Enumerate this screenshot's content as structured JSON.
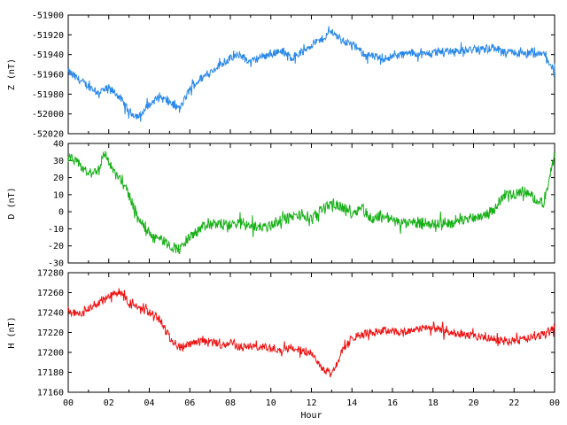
{
  "chart_data": [
    {
      "type": "line",
      "ylabel": "Z (nT)",
      "color": "#2a88e8",
      "ylim": [
        -52020,
        -51900
      ],
      "yticks": [
        -51900,
        -51920,
        -51940,
        -51960,
        -51980,
        -52000,
        -52020
      ],
      "xlim": [
        0,
        24
      ],
      "x": [
        0,
        0.5,
        1,
        1.5,
        2,
        2.5,
        3,
        3.5,
        4,
        4.5,
        5,
        5.5,
        6,
        6.5,
        7,
        7.5,
        8,
        8.5,
        9,
        9.5,
        10,
        10.5,
        11,
        11.5,
        12,
        12.5,
        13,
        13.5,
        14,
        14.5,
        15,
        15.5,
        16,
        16.5,
        17,
        17.5,
        18,
        18.5,
        19,
        19.5,
        20,
        20.5,
        21,
        21.5,
        22,
        22.5,
        23,
        23.5,
        24
      ],
      "values": [
        -51957,
        -51965,
        -51972,
        -51978,
        -51974,
        -51982,
        -51998,
        -52003,
        -51990,
        -51983,
        -51988,
        -51995,
        -51975,
        -51965,
        -51958,
        -51950,
        -51944,
        -51940,
        -51948,
        -51942,
        -51940,
        -51935,
        -51943,
        -51938,
        -51930,
        -51925,
        -51916,
        -51925,
        -51930,
        -51938,
        -51942,
        -51944,
        -51942,
        -51940,
        -51938,
        -51940,
        -51938,
        -51937,
        -51936,
        -51936,
        -51935,
        -51934,
        -51933,
        -51938,
        -51938,
        -51940,
        -51940,
        -51940,
        -51957
      ],
      "noise": 4
    },
    {
      "type": "line",
      "ylabel": "D (nT)",
      "color": "#16b016",
      "ylim": [
        -30,
        40
      ],
      "yticks": [
        40,
        30,
        20,
        10,
        0,
        -10,
        -20,
        -30
      ],
      "xlim": [
        0,
        24
      ],
      "x": [
        0,
        0.5,
        1,
        1.5,
        1.8,
        2.2,
        2.6,
        3,
        3.5,
        4,
        4.5,
        5,
        5.5,
        6,
        6.5,
        7,
        7.5,
        8,
        8.5,
        9,
        9.5,
        10,
        10.5,
        11,
        11.5,
        12,
        12.5,
        13,
        13.5,
        14,
        14.5,
        15,
        15.5,
        16,
        16.5,
        17,
        17.5,
        18,
        18.5,
        19,
        19.5,
        20,
        20.5,
        21,
        21.5,
        22,
        22.5,
        23,
        23.5,
        24
      ],
      "values": [
        32,
        28,
        22,
        25,
        35,
        24,
        18,
        10,
        -5,
        -12,
        -15,
        -20,
        -22,
        -15,
        -10,
        -8,
        -7,
        -8,
        -6,
        -8,
        -9,
        -8,
        -5,
        -3,
        -2,
        -5,
        2,
        5,
        3,
        -1,
        3,
        -5,
        -2,
        -5,
        -7,
        -7,
        -6,
        -7,
        -6,
        -7,
        -5,
        -3,
        -2,
        1,
        10,
        10,
        12,
        8,
        5,
        34
      ],
      "noise": 3
    },
    {
      "type": "line",
      "ylabel": "H (nT)",
      "color": "#ee1111",
      "ylim": [
        17160,
        17280
      ],
      "yticks": [
        17280,
        17260,
        17240,
        17220,
        17200,
        17180,
        17160
      ],
      "xlim": [
        0,
        24
      ],
      "x": [
        0,
        0.5,
        1,
        1.5,
        2,
        2.5,
        3,
        3.5,
        4,
        4.5,
        5,
        5.5,
        6,
        6.5,
        7,
        7.5,
        8,
        8.5,
        9,
        9.5,
        10,
        10.5,
        11,
        11.5,
        12,
        12.5,
        13,
        13.5,
        14,
        14.5,
        15,
        15.5,
        16,
        16.5,
        17,
        17.5,
        18,
        18.5,
        19,
        19.5,
        20,
        20.5,
        21,
        21.5,
        22,
        22.5,
        23,
        23.5,
        24
      ],
      "values": [
        17242,
        17238,
        17245,
        17250,
        17255,
        17262,
        17248,
        17245,
        17240,
        17235,
        17215,
        17205,
        17208,
        17210,
        17212,
        17207,
        17210,
        17205,
        17206,
        17205,
        17205,
        17203,
        17205,
        17202,
        17200,
        17185,
        17178,
        17200,
        17215,
        17218,
        17220,
        17222,
        17222,
        17220,
        17222,
        17225,
        17225,
        17222,
        17220,
        17218,
        17216,
        17214,
        17213,
        17212,
        17212,
        17213,
        17215,
        17218,
        17225
      ],
      "noise": 4
    }
  ],
  "xaxis": {
    "label": "Hour",
    "ticks": [
      "00",
      "02",
      "04",
      "06",
      "08",
      "10",
      "12",
      "14",
      "16",
      "18",
      "20",
      "22",
      "00"
    ]
  }
}
